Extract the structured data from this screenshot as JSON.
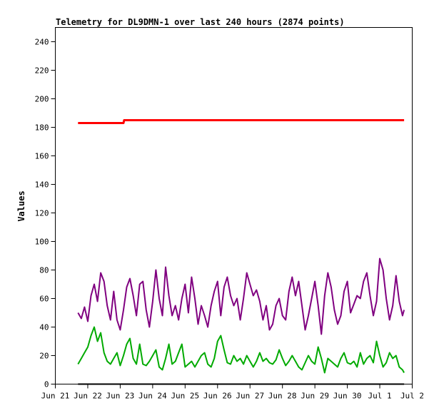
{
  "chart_data": {
    "type": "line",
    "title": "Telemetry for DL9DMN-1 over last 240 hours (2874 points)",
    "xlabel": "",
    "ylabel": "Values",
    "xlim": [
      0,
      11
    ],
    "ylim": [
      0,
      250
    ],
    "yticks": [
      0,
      20,
      40,
      60,
      80,
      100,
      120,
      140,
      160,
      180,
      200,
      220,
      240
    ],
    "xticks": [
      {
        "x": 0,
        "label": "Jun 21"
      },
      {
        "x": 1,
        "label": "Jun 22"
      },
      {
        "x": 2,
        "label": "Jun 23"
      },
      {
        "x": 3,
        "label": "Jun 24"
      },
      {
        "x": 4,
        "label": "Jun 25"
      },
      {
        "x": 5,
        "label": "Jun 26"
      },
      {
        "x": 6,
        "label": "Jun 27"
      },
      {
        "x": 7,
        "label": "Jun 28"
      },
      {
        "x": 8,
        "label": "Jun 29"
      },
      {
        "x": 9,
        "label": "Jun 30"
      },
      {
        "x": 10,
        "label": "Jul 1"
      },
      {
        "x": 11,
        "label": "Jul 2"
      }
    ],
    "grid": false,
    "legend": "none",
    "series": [
      {
        "color": "#ff0000",
        "x": [
          0.7,
          2.1,
          2.12,
          2.3,
          2.5,
          3.0,
          4.0,
          5.0,
          6.0,
          7.0,
          8.0,
          9.0,
          10.0,
          10.75
        ],
        "y": [
          183,
          183,
          185,
          185,
          185,
          185,
          185,
          185,
          185,
          185,
          185,
          185,
          185,
          185
        ]
      },
      {
        "color": "#800080",
        "x": [
          0.7,
          0.8,
          0.9,
          1.0,
          1.1,
          1.2,
          1.3,
          1.4,
          1.5,
          1.6,
          1.7,
          1.8,
          1.9,
          2.0,
          2.1,
          2.2,
          2.3,
          2.4,
          2.5,
          2.6,
          2.7,
          2.8,
          2.9,
          3.0,
          3.1,
          3.2,
          3.3,
          3.4,
          3.5,
          3.6,
          3.7,
          3.8,
          3.9,
          4.0,
          4.1,
          4.2,
          4.3,
          4.4,
          4.5,
          4.6,
          4.7,
          4.8,
          4.9,
          5.0,
          5.1,
          5.2,
          5.3,
          5.4,
          5.5,
          5.6,
          5.7,
          5.8,
          5.9,
          6.0,
          6.1,
          6.2,
          6.3,
          6.4,
          6.5,
          6.6,
          6.7,
          6.8,
          6.9,
          7.0,
          7.1,
          7.2,
          7.3,
          7.4,
          7.5,
          7.6,
          7.7,
          7.8,
          7.9,
          8.0,
          8.1,
          8.2,
          8.3,
          8.4,
          8.5,
          8.6,
          8.7,
          8.8,
          8.9,
          9.0,
          9.1,
          9.2,
          9.3,
          9.4,
          9.5,
          9.6,
          9.7,
          9.8,
          9.9,
          10.0,
          10.1,
          10.2,
          10.3,
          10.4,
          10.5,
          10.6,
          10.7,
          10.75
        ],
        "y": [
          50,
          46,
          54,
          44,
          62,
          70,
          58,
          78,
          72,
          55,
          45,
          65,
          45,
          38,
          52,
          68,
          74,
          62,
          48,
          70,
          72,
          52,
          40,
          58,
          80,
          60,
          48,
          82,
          62,
          48,
          55,
          45,
          60,
          70,
          50,
          75,
          60,
          42,
          55,
          48,
          40,
          55,
          65,
          72,
          48,
          68,
          75,
          62,
          55,
          60,
          45,
          60,
          78,
          70,
          62,
          66,
          58,
          45,
          55,
          38,
          42,
          55,
          60,
          48,
          45,
          65,
          75,
          62,
          72,
          55,
          38,
          48,
          60,
          72,
          55,
          35,
          62,
          78,
          68,
          52,
          42,
          48,
          65,
          72,
          50,
          56,
          62,
          60,
          72,
          78,
          62,
          48,
          58,
          88,
          80,
          60,
          45,
          55,
          76,
          58,
          48,
          52
        ]
      },
      {
        "color": "#00aa00",
        "x": [
          0.7,
          0.8,
          0.9,
          1.0,
          1.1,
          1.2,
          1.3,
          1.4,
          1.5,
          1.6,
          1.7,
          1.8,
          1.9,
          2.0,
          2.1,
          2.2,
          2.3,
          2.4,
          2.5,
          2.6,
          2.7,
          2.8,
          2.9,
          3.0,
          3.1,
          3.2,
          3.3,
          3.4,
          3.5,
          3.6,
          3.7,
          3.8,
          3.9,
          4.0,
          4.1,
          4.2,
          4.3,
          4.4,
          4.5,
          4.6,
          4.7,
          4.8,
          4.9,
          5.0,
          5.1,
          5.2,
          5.3,
          5.4,
          5.5,
          5.6,
          5.7,
          5.8,
          5.9,
          6.0,
          6.1,
          6.2,
          6.3,
          6.4,
          6.5,
          6.6,
          6.7,
          6.8,
          6.9,
          7.0,
          7.1,
          7.2,
          7.3,
          7.4,
          7.5,
          7.6,
          7.7,
          7.8,
          7.9,
          8.0,
          8.1,
          8.2,
          8.3,
          8.4,
          8.5,
          8.6,
          8.7,
          8.8,
          8.9,
          9.0,
          9.1,
          9.2,
          9.3,
          9.4,
          9.5,
          9.6,
          9.7,
          9.8,
          9.9,
          10.0,
          10.1,
          10.2,
          10.3,
          10.4,
          10.5,
          10.6,
          10.7,
          10.75
        ],
        "y": [
          14,
          18,
          22,
          26,
          34,
          40,
          30,
          36,
          22,
          16,
          14,
          18,
          22,
          13,
          20,
          28,
          32,
          18,
          14,
          28,
          14,
          13,
          16,
          20,
          24,
          12,
          10,
          18,
          28,
          14,
          16,
          22,
          28,
          12,
          14,
          16,
          12,
          16,
          20,
          22,
          14,
          12,
          18,
          30,
          34,
          24,
          15,
          14,
          20,
          16,
          18,
          14,
          20,
          16,
          12,
          16,
          22,
          16,
          18,
          15,
          14,
          17,
          24,
          18,
          13,
          16,
          20,
          16,
          12,
          10,
          15,
          20,
          16,
          14,
          26,
          18,
          8,
          18,
          16,
          14,
          12,
          18,
          22,
          15,
          14,
          16,
          12,
          22,
          14,
          18,
          20,
          15,
          30,
          20,
          12,
          15,
          22,
          18,
          20,
          12,
          10,
          8
        ]
      },
      {
        "color": "#000000",
        "x": [
          0.7,
          10.75
        ],
        "y": [
          0,
          0
        ]
      }
    ]
  }
}
